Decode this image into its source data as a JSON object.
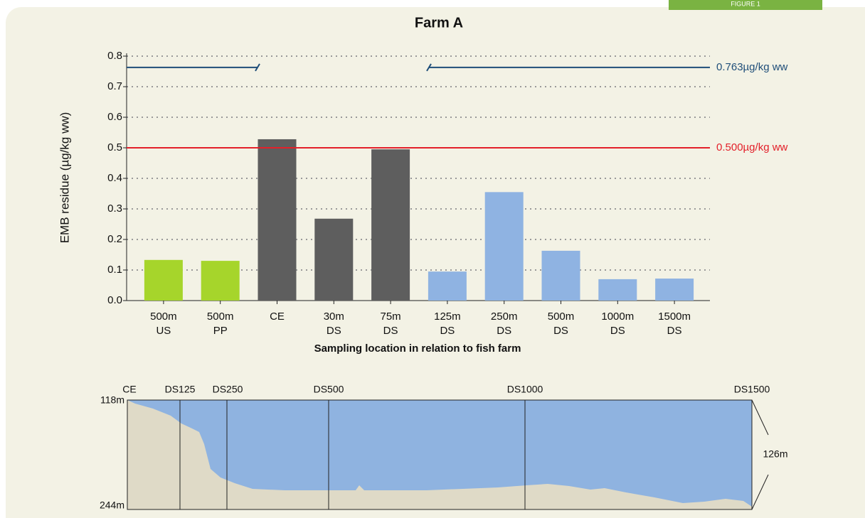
{
  "figure_label": "FIGURE 1",
  "chart_data": {
    "type": "bar",
    "title": "Farm A",
    "y_label": "EMB residue (µg/kg ww)",
    "x_label": "Sampling location in relation to fish farm",
    "categories": [
      [
        "500m",
        "US"
      ],
      [
        "500m",
        "PP"
      ],
      [
        "CE"
      ],
      [
        "30m",
        "DS"
      ],
      [
        "75m",
        "DS"
      ],
      [
        "125m",
        "DS"
      ],
      [
        "250m",
        "DS"
      ],
      [
        "500m",
        "DS"
      ],
      [
        "1000m",
        "DS"
      ],
      [
        "1500m",
        "DS"
      ]
    ],
    "values": [
      0.133,
      0.13,
      0.528,
      0.268,
      0.495,
      0.095,
      0.355,
      0.163,
      0.07,
      0.072
    ],
    "colors": [
      "#a6d52b",
      "#a6d52b",
      "#5e5e5e",
      "#5e5e5e",
      "#5e5e5e",
      "#8fb3e2",
      "#8fb3e2",
      "#8fb3e2",
      "#8fb3e2",
      "#8fb3e2"
    ],
    "ylim": [
      0,
      0.8
    ],
    "yticks": [
      {
        "value": 0,
        "label": "0.0"
      },
      0.1,
      0.2,
      0.3,
      0.4,
      0.5,
      0.6,
      0.7,
      0.8
    ],
    "grid": true,
    "reference_lines": [
      {
        "value": 0.763,
        "label": "0.763µg/kg ww",
        "color": "#1f4e79",
        "broken": true
      },
      {
        "value": 0.5,
        "label": "0.500µg/kg ww",
        "color": "#e3202a",
        "broken": false
      }
    ]
  },
  "profile": {
    "stations": [
      "CE",
      "DS125",
      "DS250",
      "DS500",
      "DS1000",
      "DS1500"
    ],
    "top_depth": "118m",
    "bottom_depth": "244m",
    "depth_range": "126m"
  }
}
